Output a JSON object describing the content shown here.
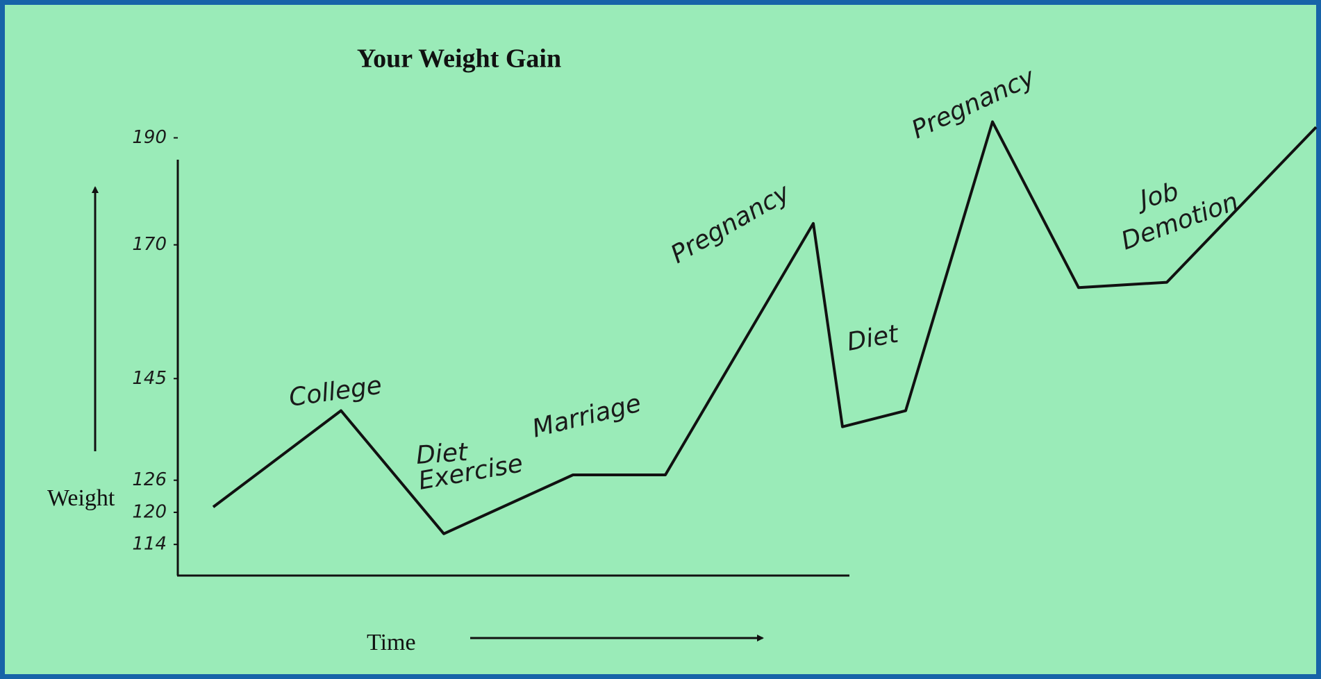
{
  "chart_data": {
    "type": "line",
    "title": "Your Weight Gain",
    "y_label": "Weight",
    "x_label": "Time",
    "categories": [
      null,
      null,
      null,
      null,
      null,
      null,
      null,
      null,
      null,
      null,
      null,
      null
    ],
    "values": [
      121,
      139,
      116,
      127,
      127,
      174,
      136,
      139,
      193,
      162,
      163,
      192
    ],
    "color": "#111111",
    "ylim": [
      110,
      195
    ],
    "yticks": [
      114,
      120,
      126,
      145,
      170,
      190
    ],
    "annotations": [
      "College",
      "Diet",
      "Exercise",
      "Marriage",
      "Pregnancy",
      "Diet",
      "Pregnancy",
      "Job",
      "Demotion"
    ]
  }
}
